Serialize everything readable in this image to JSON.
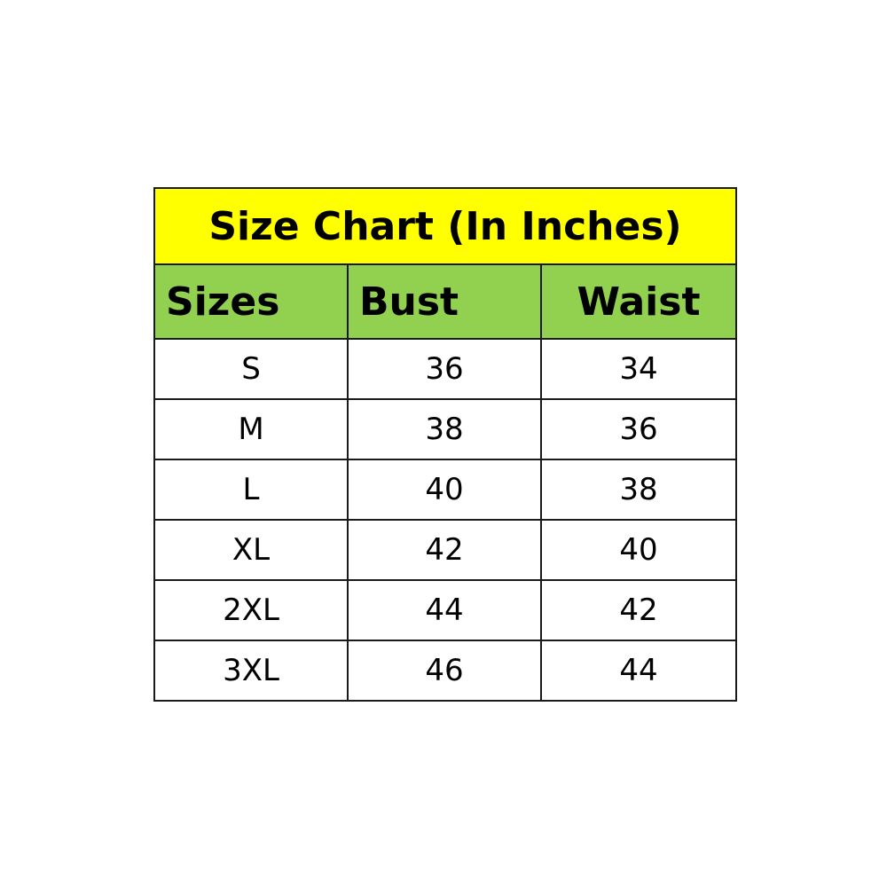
{
  "title": "Size Chart (In Inches)",
  "colors": {
    "title_bg": "#ffff00",
    "header_bg": "#92d050"
  },
  "headers": [
    "Sizes",
    "Bust",
    "Waist"
  ],
  "rows": [
    [
      "S",
      "36",
      "34"
    ],
    [
      "M",
      "38",
      "36"
    ],
    [
      "L",
      "40",
      "38"
    ],
    [
      "XL",
      "42",
      "40"
    ],
    [
      "2XL",
      "44",
      "42"
    ],
    [
      "3XL",
      "46",
      "44"
    ]
  ]
}
